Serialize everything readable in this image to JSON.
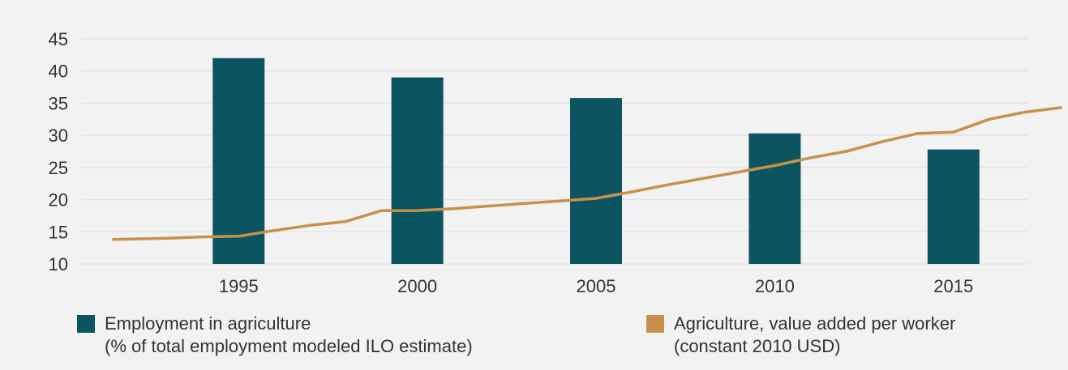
{
  "chart_data": {
    "type": "bar",
    "title": "",
    "xlabel": "",
    "ylabel": "",
    "ylim": [
      10,
      45
    ],
    "yticks": [
      "10",
      "15",
      "20",
      "25",
      "30",
      "35",
      "40",
      "45"
    ],
    "xlim": [
      1991.5,
      2018
    ],
    "xticks": [
      "1995",
      "2000",
      "2005",
      "2010",
      "2015"
    ],
    "grid": true,
    "legend_position": "bottom",
    "series": [
      {
        "type": "bar",
        "name_lines": [
          "Employment in agriculture",
          "(% of total employment modeled ILO estimate)"
        ],
        "color": "#0c5460",
        "x": [
          1995,
          2000,
          2005,
          2010,
          2015
        ],
        "values": [
          42,
          39,
          35.8,
          30.3,
          27.8
        ]
      },
      {
        "type": "line",
        "name_lines": [
          "Agriculture, value added per worker",
          "(constant 2010 USD)"
        ],
        "color": "#c8914b",
        "x": [
          1991.5,
          1993,
          1994,
          1995,
          1996,
          1997,
          1998,
          1999,
          2000,
          2001,
          2002,
          2003,
          2004,
          2005,
          2006,
          2007,
          2008,
          2009,
          2010,
          2011,
          2012,
          2013,
          2014,
          2015,
          2016,
          2017,
          2018
        ],
        "values": [
          13.8,
          14,
          14.2,
          14.3,
          15.2,
          16,
          16.6,
          18.3,
          18.3,
          18.6,
          19,
          19.4,
          19.8,
          20.2,
          21.2,
          22.3,
          23.3,
          24.3,
          25.3,
          26.5,
          27.5,
          29,
          30.3,
          30.5,
          32.5,
          33.6,
          34.3
        ]
      }
    ]
  }
}
